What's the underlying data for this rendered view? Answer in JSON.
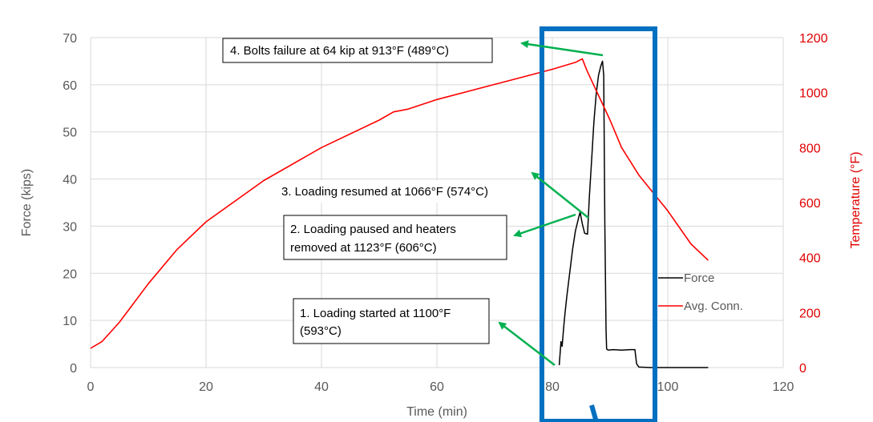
{
  "chart_data": {
    "type": "line",
    "xlabel": "Time (min)",
    "ylabel": "Force (kips)",
    "y2label": "Temperature (°F)",
    "xlim": [
      0,
      120
    ],
    "ylim": [
      0,
      70
    ],
    "y2lim": [
      0,
      1200
    ],
    "xticks": [
      "0",
      "20",
      "40",
      "60",
      "80",
      "100",
      "120"
    ],
    "yticks": [
      "0",
      "10",
      "20",
      "30",
      "40",
      "50",
      "60",
      "70"
    ],
    "y2ticks": [
      "0",
      "200",
      "400",
      "600",
      "800",
      "1000",
      "1200"
    ],
    "grid": true,
    "legend_placement": "right",
    "series": [
      {
        "name": "Force",
        "axis": "left",
        "color": "#000000",
        "x": [
          81.2,
          81.5,
          81.7,
          82.0,
          82.2,
          82.5,
          83.0,
          83.5,
          84.0,
          84.5,
          84.8,
          85.2,
          85.6,
          86.1,
          86.4,
          86.8,
          87.2,
          87.6,
          88.0,
          88.4,
          88.7,
          88.9,
          89.1,
          89.3,
          89.4,
          89.5,
          89.8,
          90.5,
          92.0,
          93.5,
          94.3,
          94.6,
          95.0,
          97.0,
          100.0,
          104.0,
          107.0
        ],
        "y": [
          0.5,
          5.5,
          4.5,
          9.0,
          11.5,
          15.0,
          20.0,
          25.0,
          29.0,
          31.5,
          33.0,
          30.5,
          28.5,
          28.3,
          36.0,
          44.0,
          52.0,
          58.0,
          62.0,
          64.0,
          65.0,
          62.0,
          30.0,
          8.0,
          4.0,
          3.8,
          3.7,
          3.8,
          3.7,
          3.8,
          3.8,
          0.8,
          0.1,
          0.0,
          0.0,
          0.0,
          0.0
        ]
      },
      {
        "name": "Avg. Conn.",
        "axis": "right",
        "color": "#ff0000",
        "x": [
          0,
          2,
          5,
          10,
          15,
          20,
          30,
          40,
          50,
          52.5,
          55,
          60,
          70,
          80,
          84,
          85.2,
          86,
          88,
          90,
          92,
          95,
          100,
          104,
          107
        ],
        "y": [
          70,
          95,
          165,
          305,
          430,
          530,
          680,
          800,
          900,
          930,
          940,
          975,
          1030,
          1085,
          1110,
          1123,
          1080,
          990,
          900,
          800,
          700,
          570,
          450,
          390
        ]
      }
    ],
    "annotations": [
      "4. Bolts failure at 64 kip at 913°F (489°C)",
      "3. Loading resumed at 1066°F (574°C)",
      "2. Loading paused and heaters removed at 1123°F (606°C)",
      "1. Loading started at 1100°F (593°C)"
    ]
  },
  "annotations": {
    "a4": "4. Bolts failure at 64 kip at 913°F (489°C)",
    "a3": "3. Loading resumed at 1066°F (574°C)",
    "a2_line1": "2. Loading paused and heaters",
    "a2_line2": "removed at 1123°F (606°C)",
    "a1_line1": "1. Loading started at 1100°F",
    "a1_line2": "(593°C)"
  },
  "colors": {
    "grid": "#d9d9d9",
    "arrow": "#00b050",
    "highlight": "#0070c0",
    "axis_text": "#595959",
    "temperature_text": "#e00000"
  }
}
